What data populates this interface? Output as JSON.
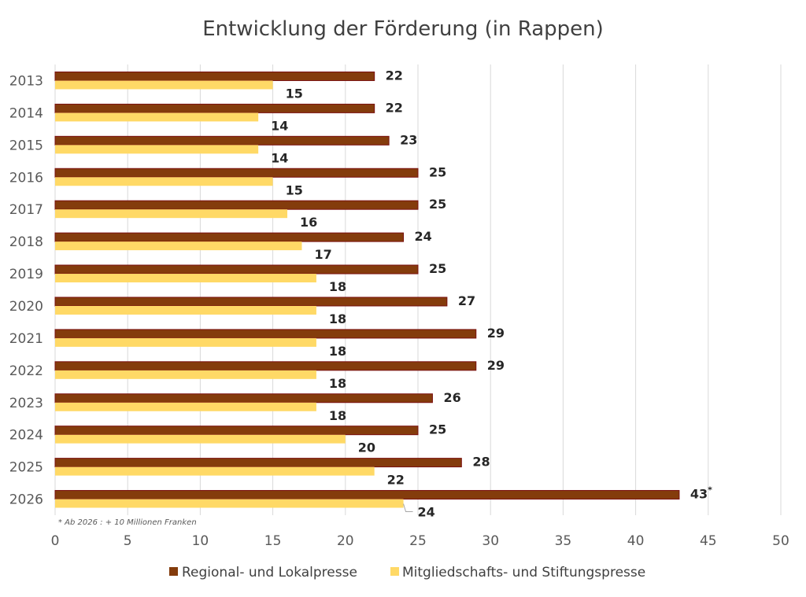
{
  "chart_data": {
    "type": "bar",
    "orientation": "horizontal",
    "title": "Entwicklung der Förderung (in Rappen)",
    "xlabel": "",
    "ylabel": "",
    "xlim": [
      0,
      50
    ],
    "x_ticks": [
      0,
      5,
      10,
      15,
      20,
      25,
      30,
      35,
      40,
      45,
      50
    ],
    "grid": true,
    "legend_position": "bottom",
    "categories": [
      "2013",
      "2014",
      "2015",
      "2016",
      "2017",
      "2018",
      "2019",
      "2020",
      "2021",
      "2022",
      "2023",
      "2024",
      "2025",
      "2026"
    ],
    "series": [
      {
        "name": "Regional- und Lokalpresse",
        "color": "#843C0C",
        "values": [
          22,
          22,
          23,
          25,
          25,
          24,
          25,
          27,
          29,
          29,
          26,
          25,
          28,
          43
        ],
        "labels": [
          "22",
          "22",
          "23",
          "25",
          "25",
          "24",
          "25",
          "27",
          "29",
          "29",
          "26",
          "25",
          "28",
          "43*"
        ]
      },
      {
        "name": "Mitgliedschafts- und Stiftungspresse",
        "color": "#FFD966",
        "values": [
          15,
          14,
          14,
          15,
          16,
          17,
          18,
          18,
          18,
          18,
          18,
          20,
          22,
          24
        ],
        "labels": [
          "15",
          "14",
          "14",
          "15",
          "16",
          "17",
          "18",
          "18",
          "18",
          "18",
          "18",
          "20",
          "22",
          "24"
        ]
      }
    ],
    "annotations": [
      "* Ab 2026 : + 10 Millionen Franken"
    ]
  }
}
